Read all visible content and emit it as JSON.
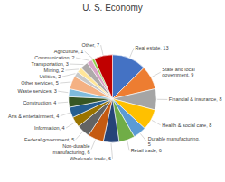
{
  "chart_data": {
    "type": "pie",
    "title": "U. S. Economy",
    "categories": [
      "Real estate, 13",
      "State and local\ngovernment, 9",
      "Financial & insurance, 8",
      "Health & social care, 8",
      "Durable manufacturing,\n5",
      "Retail trade, 6",
      "Wholesale trade, 6",
      "Non-durable\nmanufacturing, 6",
      "Federal government, 5",
      "Information, 4",
      "Arts & entertainment, 4",
      "Construction, 4",
      "Waste services, 3",
      "Other services, 5",
      "Utilities, 2",
      "Mining, 2",
      "Transportation, 3",
      "Communication, 2",
      "Agriculture, 1",
      "Other, 7"
    ],
    "values": [
      13,
      9,
      8,
      8,
      5,
      6,
      6,
      6,
      5,
      4,
      4,
      4,
      3,
      5,
      2,
      2,
      3,
      2,
      1,
      7
    ],
    "colors": [
      "#4472C4",
      "#ED7D31",
      "#A5A5A5",
      "#FFC000",
      "#5B9BD5",
      "#70AD47",
      "#264478",
      "#C55A11",
      "#636363",
      "#997300",
      "#255E91",
      "#375623",
      "#7FBBDC",
      "#F4B183",
      "#C9C9C9",
      "#FFE699",
      "#AEAAAA",
      "#D9A4C7",
      "#92D050",
      "#C00000"
    ]
  }
}
